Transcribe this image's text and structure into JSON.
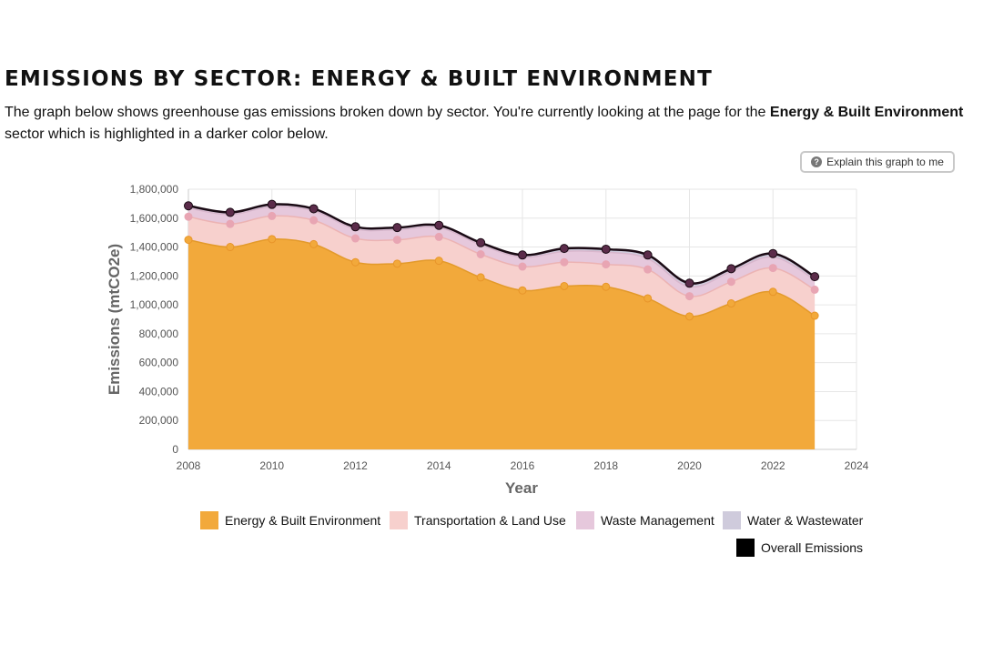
{
  "page": {
    "title": "Emissions by Sector: Energy & Built Environment",
    "desc_pre": "The graph below shows greenhouse gas emissions broken down by sector. You're currently looking at the page for the ",
    "desc_bold": "Energy & Built Environment",
    "desc_post": " sector which is highlighted in a darker color below."
  },
  "explain_button": {
    "label": "Explain this graph to me",
    "icon": "question-circle-icon"
  },
  "colors": {
    "energy": "#f2a93b",
    "transportation": "#f7d0cd",
    "waste": "#e6c8dc",
    "water": "#cfcbdc",
    "overall": "#000000",
    "overall_marker": "#5b2c4a",
    "transport_marker": "#e8a5b3",
    "grid": "#e6e6e6"
  },
  "chart_data": {
    "type": "area",
    "stacked": true,
    "xlabel": "Year",
    "ylabel": "Emissions (mtCO2e)",
    "xlim": [
      2008,
      2024
    ],
    "ylim": [
      0,
      1800000
    ],
    "x_ticks": [
      2008,
      2010,
      2012,
      2014,
      2016,
      2018,
      2020,
      2022,
      2024
    ],
    "y_ticks": [
      0,
      200000,
      400000,
      600000,
      800000,
      1000000,
      1200000,
      1400000,
      1600000,
      1800000
    ],
    "x_tick_labels": [
      "2008",
      "2010",
      "2012",
      "2014",
      "2016",
      "2018",
      "2020",
      "2022",
      "2024"
    ],
    "y_tick_labels": [
      "0",
      "200,000",
      "400,000",
      "600,000",
      "800,000",
      "1,000,000",
      "1,200,000",
      "1,400,000",
      "1,600,000",
      "1,800,000"
    ],
    "x": [
      2008,
      2009,
      2010,
      2011,
      2012,
      2013,
      2014,
      2015,
      2016,
      2017,
      2018,
      2019,
      2020,
      2021,
      2022,
      2023
    ],
    "series": [
      {
        "name": "Energy & Built Environment",
        "key": "energy",
        "cumulative": [
          1450000,
          1400000,
          1455000,
          1420000,
          1295000,
          1285000,
          1305000,
          1190000,
          1100000,
          1130000,
          1125000,
          1045000,
          920000,
          1010000,
          1090000,
          925000
        ]
      },
      {
        "name": "Transportation & Land Use",
        "key": "transportation",
        "cumulative": [
          1610000,
          1560000,
          1615000,
          1585000,
          1460000,
          1450000,
          1470000,
          1350000,
          1265000,
          1295000,
          1280000,
          1245000,
          1060000,
          1160000,
          1255000,
          1105000
        ]
      },
      {
        "name": "Waste Management",
        "key": "waste",
        "cumulative": [
          1670000,
          1625000,
          1680000,
          1650000,
          1525000,
          1520000,
          1535000,
          1415000,
          1330000,
          1370000,
          1365000,
          1320000,
          1125000,
          1230000,
          1330000,
          1175000
        ]
      },
      {
        "name": "Water & Wastewater",
        "key": "water",
        "cumulative": [
          1685000,
          1640000,
          1695000,
          1665000,
          1540000,
          1535000,
          1550000,
          1430000,
          1345000,
          1390000,
          1385000,
          1345000,
          1150000,
          1250000,
          1355000,
          1195000
        ]
      }
    ],
    "overall": {
      "name": "Overall Emissions",
      "key": "overall",
      "values": [
        1685000,
        1640000,
        1695000,
        1665000,
        1540000,
        1535000,
        1550000,
        1430000,
        1345000,
        1390000,
        1385000,
        1345000,
        1150000,
        1250000,
        1355000,
        1195000
      ]
    },
    "legend": [
      {
        "label": "Energy & Built Environment",
        "key": "energy"
      },
      {
        "label": "Transportation & Land Use",
        "key": "transportation"
      },
      {
        "label": "Waste Management",
        "key": "waste"
      },
      {
        "label": "Water & Wastewater",
        "key": "water"
      },
      {
        "label": "Overall Emissions",
        "key": "overall"
      }
    ]
  }
}
